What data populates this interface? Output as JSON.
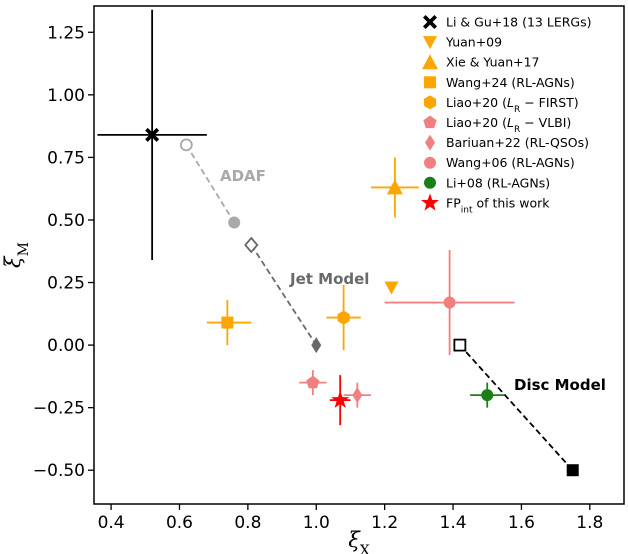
{
  "chart_data": {
    "type": "scatter",
    "xlabel": "ξ_X",
    "ylabel": "ξ_M",
    "xlim": [
      0.35,
      1.9
    ],
    "ylim": [
      -0.635,
      1.355
    ],
    "xticks": [
      0.4,
      0.6,
      0.8,
      1.0,
      1.2,
      1.4,
      1.6,
      1.8
    ],
    "yticks": [
      -0.5,
      -0.25,
      0.0,
      0.25,
      0.5,
      0.75,
      1.0,
      1.25
    ],
    "xtick_labels": [
      "0.4",
      "0.6",
      "0.8",
      "1.0",
      "1.2",
      "1.4",
      "1.6",
      "1.8"
    ],
    "ytick_labels": [
      "−0.50",
      "−0.25",
      "0.00",
      "0.25",
      "0.50",
      "0.75",
      "1.00",
      "1.25"
    ],
    "series": [
      {
        "name": "Li & Gu+18 (13 LERGs)",
        "label_plain": "Li & Gu+18 (13 LERGs)",
        "marker": "X",
        "color": "#000000",
        "x": 0.52,
        "y": 0.84,
        "xerr": [
          0.16,
          0.16
        ],
        "yerr": [
          0.5,
          0.5
        ]
      },
      {
        "name": "Yuan+09",
        "label_plain": "Yuan+09",
        "marker": "v",
        "color": "#FFA500",
        "x": 1.22,
        "y": 0.23,
        "xerr": null,
        "yerr": null
      },
      {
        "name": "Xie & Yuan+17",
        "label_plain": "Xie & Yuan+17",
        "marker": "^",
        "color": "#FFA500",
        "x": 1.23,
        "y": 0.63,
        "xerr": [
          0.07,
          0.07
        ],
        "yerr": [
          0.12,
          0.12
        ]
      },
      {
        "name": "Wang+24 (RL-AGNs)",
        "label_plain": "Wang+24 (RL-AGNs)",
        "marker": "s",
        "color": "#FFA500",
        "x": 0.74,
        "y": 0.09,
        "xerr": [
          0.06,
          0.07
        ],
        "yerr": [
          0.09,
          0.09
        ]
      },
      {
        "name": "Liao+20 (L_R − FIRST)",
        "label_plain": "Liao+20 (LR − FIRST)",
        "marker": "hexagon",
        "color": "#FFA500",
        "x": 1.08,
        "y": 0.11,
        "xerr": [
          0.05,
          0.05
        ],
        "yerr": [
          0.13,
          0.13
        ]
      },
      {
        "name": "Liao+20 (L_R − VLBI)",
        "label_plain": "Liao+20 (LR − VLBI)",
        "marker": "pentagon",
        "color": "#F08080",
        "x": 0.99,
        "y": -0.15,
        "xerr": [
          0.04,
          0.04
        ],
        "yerr": [
          0.05,
          0.05
        ]
      },
      {
        "name": "Bariuan+22 (RL-QSOs)",
        "label_plain": "Bariuan+22 (RL-QSOs)",
        "marker": "d",
        "color": "#F08080",
        "x": 1.12,
        "y": -0.2,
        "xerr": [
          0.04,
          0.04
        ],
        "yerr": [
          0.05,
          0.05
        ]
      },
      {
        "name": "Wang+06 (RL-AGNs)",
        "label_plain": "Wang+06 (RL-AGNs)",
        "marker": "o",
        "color": "#F08080",
        "x": 1.39,
        "y": 0.17,
        "xerr": [
          0.19,
          0.19
        ],
        "yerr": [
          0.21,
          0.21
        ]
      },
      {
        "name": "Li+08 (RL-AGNs)",
        "label_plain": "Li+08 (RL-AGNs)",
        "marker": "o",
        "color": "#1A7F1A",
        "x": 1.5,
        "y": -0.2,
        "xerr": [
          0.05,
          0.05
        ],
        "yerr": [
          0.05,
          0.05
        ]
      },
      {
        "name": "FP_int of this work",
        "label_plain": "FPint of this work",
        "marker": "star",
        "color": "#FF0000",
        "x": 1.07,
        "y": -0.22,
        "xerr": [
          0.03,
          0.03
        ],
        "yerr": [
          0.1,
          0.1
        ]
      }
    ],
    "models": [
      {
        "name": "ADAF",
        "label": "ADAF",
        "color": "#A9A9A9",
        "points": [
          {
            "x": 0.62,
            "y": 0.8,
            "marker": "o-open"
          },
          {
            "x": 0.76,
            "y": 0.49,
            "marker": "o"
          }
        ]
      },
      {
        "name": "Jet Model",
        "label": "Jet Model",
        "color": "#696969",
        "points": [
          {
            "x": 0.81,
            "y": 0.4,
            "marker": "d-open"
          },
          {
            "x": 1.0,
            "y": 0.0,
            "marker": "d"
          }
        ]
      },
      {
        "name": "Disc Model",
        "label": "Disc Model",
        "color": "#000000",
        "points": [
          {
            "x": 1.42,
            "y": 0.0,
            "marker": "s-open"
          },
          {
            "x": 1.75,
            "y": -0.5,
            "marker": "s"
          }
        ]
      }
    ],
    "legend_position": "upper right"
  }
}
